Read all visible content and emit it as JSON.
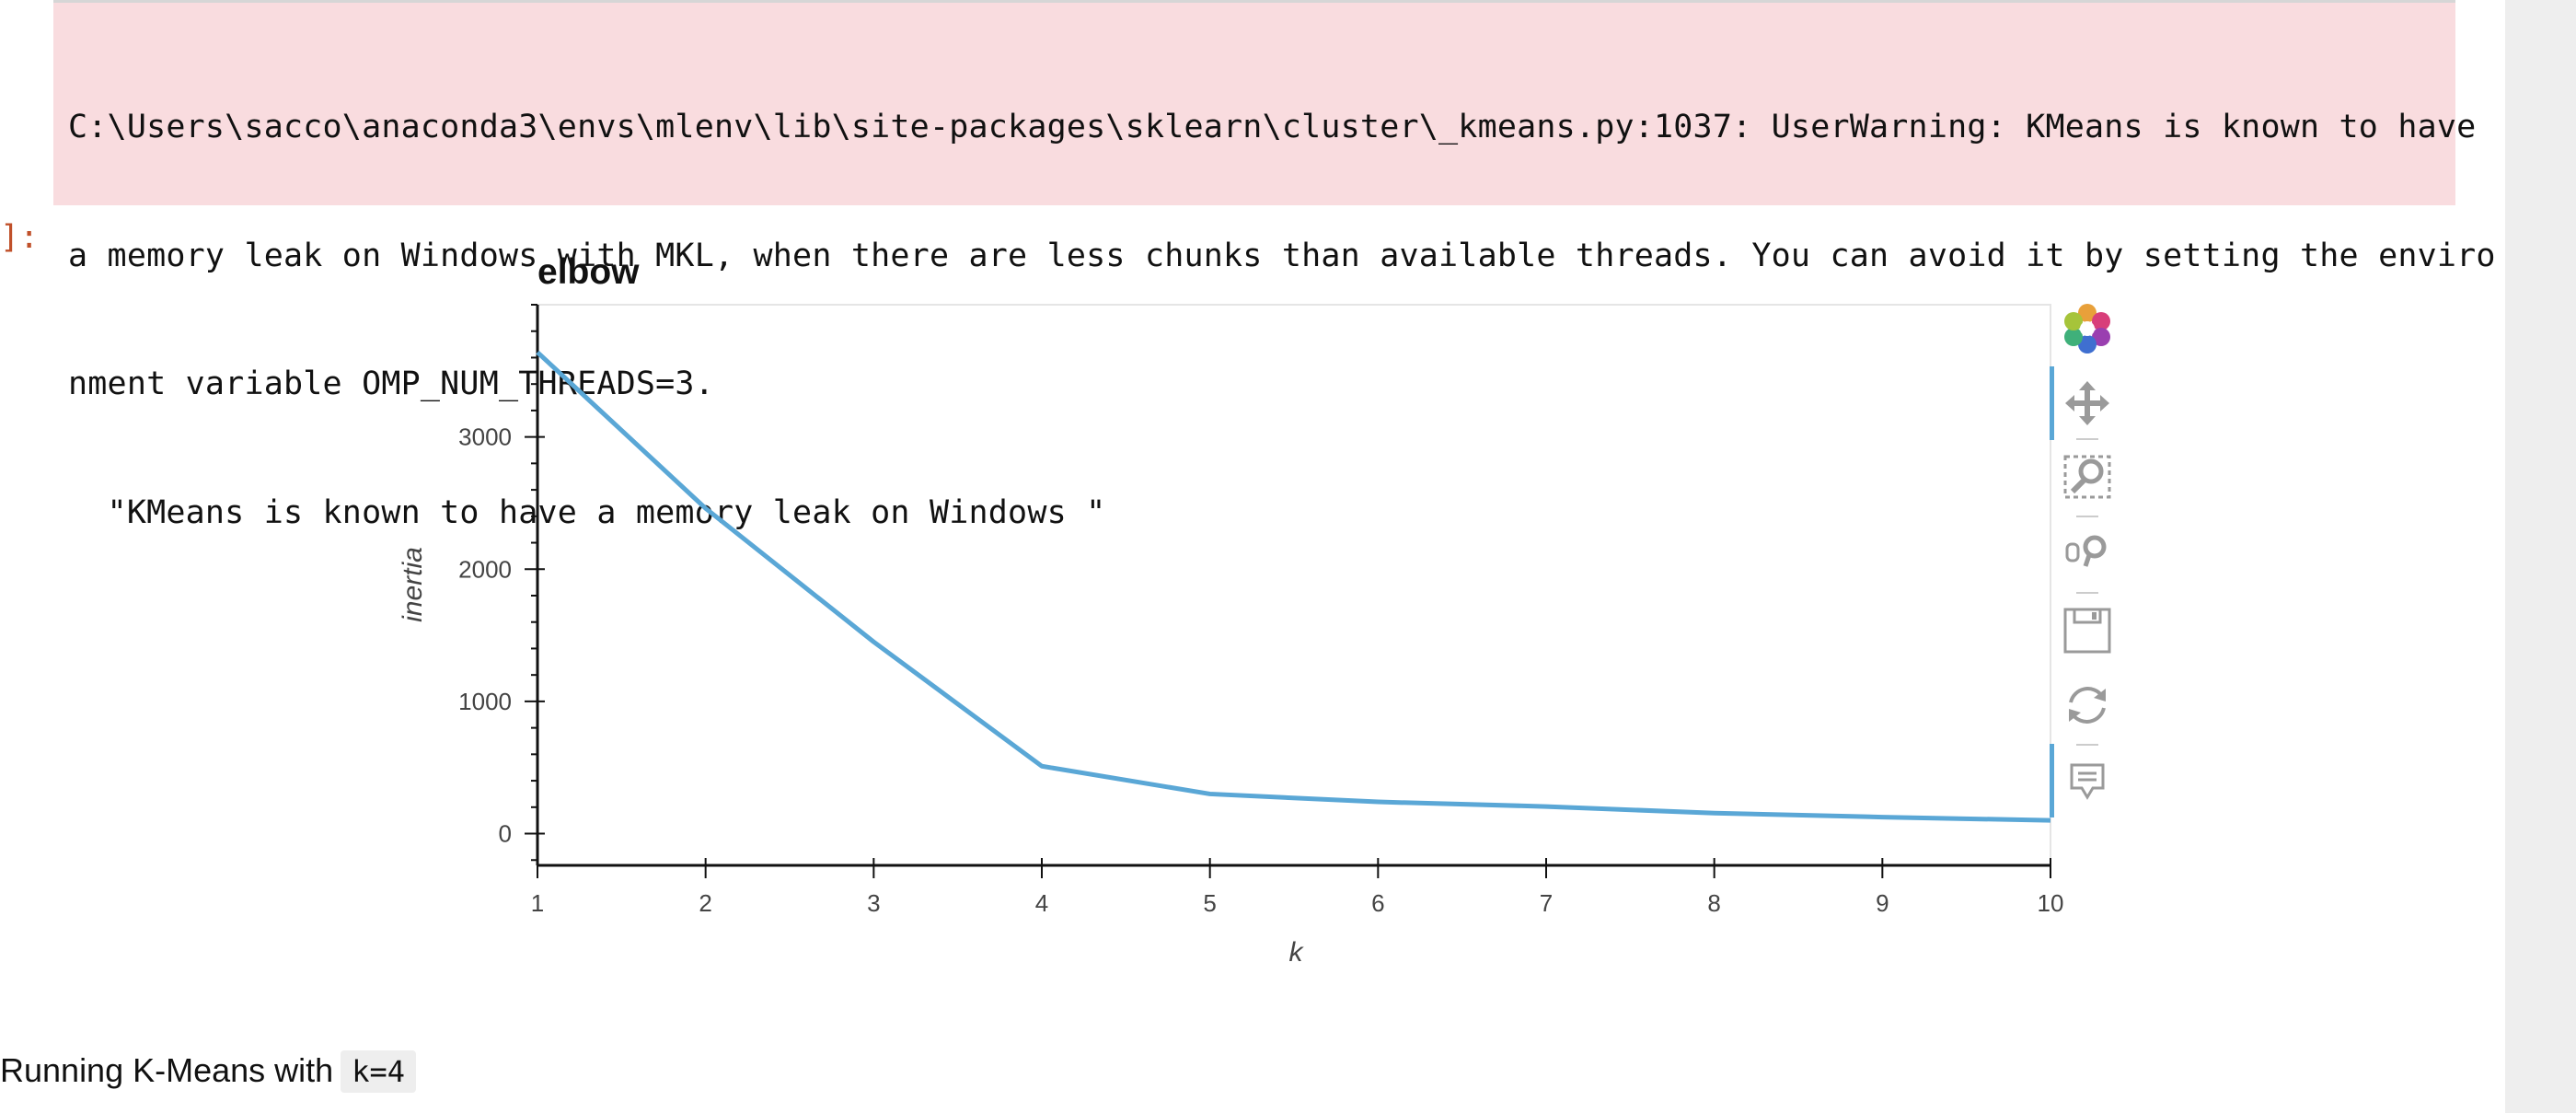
{
  "warning": {
    "lines": [
      "C:\\Users\\sacco\\anaconda3\\envs\\mlenv\\lib\\site-packages\\sklearn\\cluster\\_kmeans.py:1037: UserWarning: KMeans is known to have",
      "a memory leak on Windows with MKL, when there are less chunks than available threads. You can avoid it by setting the enviro",
      "nment variable OMP_NUM_THREADS=3.",
      "  \"KMeans is known to have a memory leak on Windows \""
    ]
  },
  "cell": {
    "out_prompt": "]:"
  },
  "toolbar": {
    "icons": [
      "bokeh-logo-icon",
      "pan-icon",
      "box-zoom-icon",
      "wheel-zoom-icon",
      "save-icon",
      "reset-icon",
      "hover-icon"
    ],
    "active": [
      "pan-icon",
      "hover-icon"
    ],
    "accent": "#5aa7d6"
  },
  "chart_data": {
    "type": "line",
    "title": "elbow",
    "xlabel": "k",
    "ylabel": "inertia",
    "x": [
      1,
      2,
      3,
      4,
      5,
      6,
      7,
      8,
      9,
      10
    ],
    "series": [
      {
        "values": [
          3640,
          2460,
          1450,
          510,
          300,
          240,
          205,
          155,
          125,
          100
        ],
        "color": "#5aa7d6"
      }
    ],
    "xlim": [
      1,
      10
    ],
    "ylim": [
      -240,
      4000
    ],
    "xticks": [
      1,
      2,
      3,
      4,
      5,
      6,
      7,
      8,
      9,
      10
    ],
    "yticks": [
      0,
      1000,
      2000,
      3000
    ],
    "grid": false,
    "legend": "none"
  },
  "markdown": {
    "text": "Running K-Means with",
    "code": "k=4"
  }
}
